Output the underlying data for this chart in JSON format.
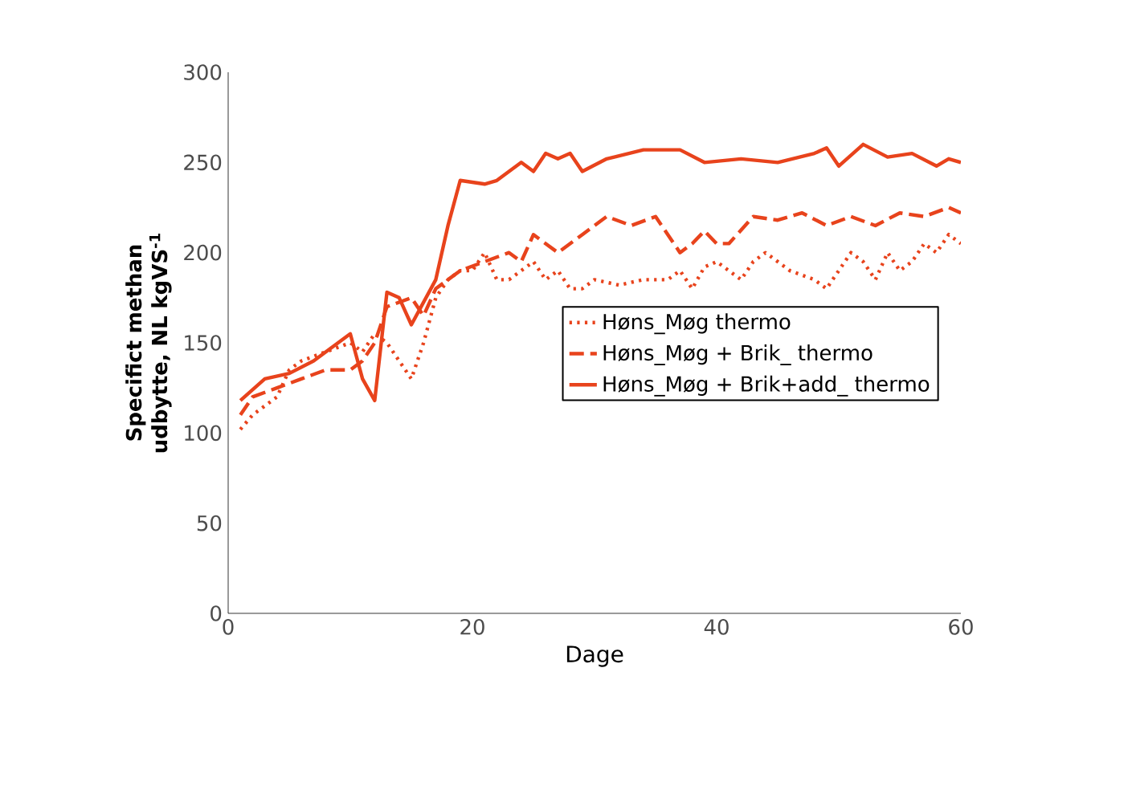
{
  "chart_data": {
    "type": "line",
    "xlabel": "Dage",
    "ylabel": "**Specifict methan udbytte, NL kgVS$^{-1}$**",
    "xlim": [
      0,
      60
    ],
    "ylim": [
      0,
      300
    ],
    "xticks": [
      0,
      20,
      40,
      60
    ],
    "yticks": [
      0,
      50,
      100,
      150,
      200,
      250,
      300
    ],
    "grid": false,
    "legend": "right",
    "marker": "none",
    "series": [
      {
        "name": "Høns_Møg thermo",
        "color": "#e8431c",
        "line_style": "dotted",
        "x": [
          1,
          2,
          3,
          4,
          5,
          6,
          8,
          10,
          11,
          12,
          13,
          14,
          15,
          16,
          17,
          18,
          19,
          20,
          21,
          22,
          23,
          24,
          25,
          26,
          27,
          28,
          29,
          30,
          32,
          34,
          36,
          37,
          38,
          39,
          40,
          41,
          42,
          43,
          44,
          45,
          46,
          48,
          49,
          50,
          51,
          52,
          53,
          54,
          55,
          56,
          57,
          58,
          59,
          60
        ],
        "values": [
          102,
          110,
          115,
          120,
          135,
          140,
          145,
          150,
          145,
          155,
          150,
          140,
          130,
          150,
          175,
          185,
          190,
          190,
          200,
          185,
          185,
          190,
          195,
          185,
          190,
          180,
          180,
          185,
          182,
          185,
          185,
          190,
          180,
          192,
          195,
          190,
          185,
          195,
          200,
          195,
          190,
          185,
          180,
          190,
          200,
          195,
          185,
          200,
          190,
          195,
          205,
          200,
          210,
          205
        ]
      },
      {
        "name": "Høns_Møg + Brik_ thermo",
        "color": "#e8431c",
        "line_style": "dashed",
        "x": [
          1,
          2,
          4,
          6,
          8,
          10,
          11,
          12,
          13,
          15,
          16,
          17,
          19,
          21,
          23,
          24,
          25,
          26,
          27,
          29,
          31,
          33,
          35,
          36,
          37,
          38,
          39,
          40,
          41,
          43,
          45,
          47,
          49,
          51,
          53,
          55,
          57,
          59,
          60
        ],
        "values": [
          110,
          120,
          125,
          130,
          135,
          135,
          140,
          150,
          170,
          175,
          165,
          180,
          190,
          195,
          200,
          195,
          210,
          205,
          200,
          210,
          220,
          215,
          220,
          210,
          200,
          205,
          212,
          205,
          205,
          220,
          218,
          222,
          215,
          220,
          215,
          222,
          220,
          225,
          222
        ]
      },
      {
        "name": "Høns_Møg + Brik+add_ thermo",
        "color": "#e8431c",
        "line_style": "solid",
        "x": [
          1,
          3,
          5,
          7,
          9,
          10,
          11,
          12,
          13,
          14,
          15,
          17,
          18,
          19,
          21,
          22,
          24,
          25,
          26,
          27,
          28,
          29,
          31,
          34,
          37,
          39,
          42,
          45,
          48,
          49,
          50,
          52,
          54,
          56,
          58,
          59,
          60
        ],
        "values": [
          118,
          130,
          133,
          140,
          150,
          155,
          130,
          118,
          178,
          175,
          160,
          185,
          215,
          240,
          238,
          240,
          250,
          245,
          255,
          252,
          255,
          245,
          252,
          257,
          257,
          250,
          252,
          250,
          255,
          258,
          248,
          260,
          253,
          255,
          248,
          252,
          250
        ]
      }
    ]
  }
}
